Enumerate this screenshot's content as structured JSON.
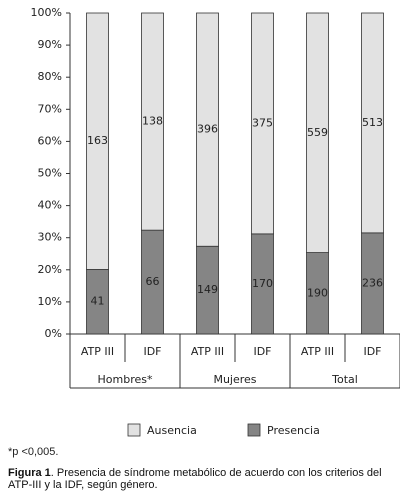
{
  "chart_data": {
    "type": "bar",
    "stacking": "percent",
    "groups": [
      {
        "name": "Hombres*",
        "categories": [
          "ATP III",
          "IDF"
        ]
      },
      {
        "name": "Mujeres",
        "categories": [
          "ATP III",
          "IDF"
        ]
      },
      {
        "name": "Total",
        "categories": [
          "ATP III",
          "IDF"
        ]
      }
    ],
    "series": [
      {
        "name": "Ausencia",
        "color": "#e2e2e2",
        "values": [
          163,
          138,
          396,
          375,
          559,
          513
        ]
      },
      {
        "name": "Presencia",
        "color": "#858585",
        "values": [
          41,
          66,
          149,
          170,
          190,
          236
        ]
      }
    ],
    "ylim": [
      0,
      100
    ],
    "yticks": [
      {
        "value": 0,
        "label": "0%"
      },
      {
        "value": 10,
        "label": "10%"
      },
      {
        "value": 20,
        "label": "20%"
      },
      {
        "value": 30,
        "label": "30%"
      },
      {
        "value": 40,
        "label": "40%"
      },
      {
        "value": 50,
        "label": "50%"
      },
      {
        "value": 60,
        "label": "60%"
      },
      {
        "value": 70,
        "label": "70%"
      },
      {
        "value": 80,
        "label": "80%"
      },
      {
        "value": 90,
        "label": "90%"
      },
      {
        "value": 100,
        "label": "100%"
      }
    ],
    "legend": "bottom",
    "footnote": "*p <0,005.",
    "caption": {
      "label": "Figura 1",
      "text": ". Presencia de síndrome metabólico de acuerdo con los criterios del ATP-III y la IDF, según género."
    }
  }
}
